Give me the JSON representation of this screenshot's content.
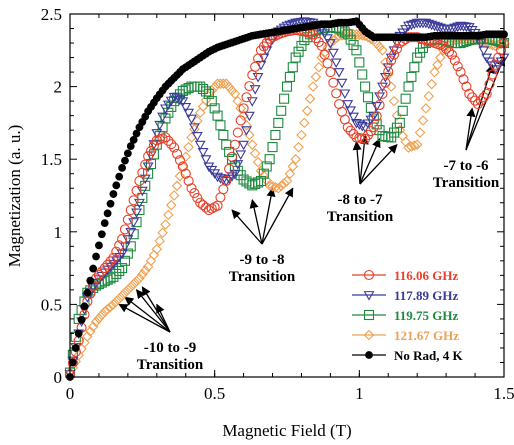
{
  "chart_data": {
    "type": "scatter",
    "xlabel": "Magnetic Field (T)",
    "ylabel": "Magnetization (a. u.)",
    "xlim": [
      0,
      1.5
    ],
    "ylim": [
      0,
      2.5
    ],
    "x_ticks": [
      "0",
      "0.5",
      "1",
      "1.5"
    ],
    "y_ticks": [
      "0",
      "0.5",
      "1",
      "1.5",
      "2",
      "2.5"
    ],
    "grid": false,
    "legend_position": "bottom-right",
    "series": [
      {
        "name": "116.06 GHz",
        "color": "#e8402a",
        "marker": "circle-open",
        "x": [
          0.0,
          0.03,
          0.06,
          0.09,
          0.12,
          0.15,
          0.18,
          0.21,
          0.24,
          0.27,
          0.3,
          0.33,
          0.36,
          0.39,
          0.42,
          0.45,
          0.48,
          0.51,
          0.54,
          0.57,
          0.6,
          0.63,
          0.66,
          0.69,
          0.72,
          0.75,
          0.78,
          0.81,
          0.84,
          0.87,
          0.9,
          0.93,
          0.96,
          0.99,
          1.02,
          1.05,
          1.08,
          1.11,
          1.14,
          1.17,
          1.2,
          1.23,
          1.26,
          1.29,
          1.32,
          1.35,
          1.38,
          1.41,
          1.44,
          1.47,
          1.5
        ],
        "y": [
          0.02,
          0.25,
          0.52,
          0.68,
          0.75,
          0.82,
          0.95,
          1.15,
          1.35,
          1.52,
          1.63,
          1.65,
          1.58,
          1.45,
          1.3,
          1.2,
          1.15,
          1.18,
          1.35,
          1.6,
          1.85,
          2.08,
          2.25,
          2.33,
          2.36,
          2.38,
          2.39,
          2.38,
          2.36,
          2.28,
          2.1,
          1.88,
          1.72,
          1.65,
          1.64,
          1.72,
          1.95,
          2.18,
          2.3,
          2.34,
          2.34,
          2.32,
          2.3,
          2.28,
          2.22,
          2.1,
          1.95,
          1.88,
          1.95,
          2.15,
          2.3
        ]
      },
      {
        "name": "117.89 GHz",
        "color": "#3a3a9a",
        "marker": "triangle-down-open",
        "x": [
          0.0,
          0.03,
          0.06,
          0.09,
          0.12,
          0.15,
          0.18,
          0.21,
          0.24,
          0.27,
          0.3,
          0.33,
          0.36,
          0.39,
          0.42,
          0.45,
          0.48,
          0.51,
          0.54,
          0.57,
          0.6,
          0.63,
          0.66,
          0.69,
          0.72,
          0.75,
          0.78,
          0.81,
          0.84,
          0.87,
          0.9,
          0.93,
          0.96,
          0.99,
          1.02,
          1.05,
          1.08,
          1.11,
          1.14,
          1.17,
          1.2,
          1.23,
          1.26,
          1.29,
          1.32,
          1.35,
          1.38,
          1.41,
          1.44,
          1.47,
          1.5
        ],
        "y": [
          0.02,
          0.3,
          0.55,
          0.65,
          0.72,
          0.78,
          0.85,
          1.0,
          1.2,
          1.45,
          1.68,
          1.85,
          1.93,
          1.9,
          1.78,
          1.6,
          1.45,
          1.38,
          1.35,
          1.4,
          1.6,
          1.9,
          2.15,
          2.3,
          2.38,
          2.42,
          2.44,
          2.45,
          2.44,
          2.4,
          2.3,
          2.1,
          1.88,
          1.75,
          1.72,
          1.8,
          2.0,
          2.2,
          2.35,
          2.42,
          2.44,
          2.44,
          2.42,
          2.4,
          2.4,
          2.42,
          2.41,
          2.35,
          2.2,
          2.12,
          2.2
        ]
      },
      {
        "name": "119.75 GHz",
        "color": "#1e8a40",
        "marker": "square-open",
        "x": [
          0.0,
          0.03,
          0.06,
          0.09,
          0.12,
          0.15,
          0.18,
          0.21,
          0.24,
          0.27,
          0.3,
          0.33,
          0.36,
          0.39,
          0.42,
          0.45,
          0.48,
          0.51,
          0.54,
          0.57,
          0.6,
          0.63,
          0.66,
          0.69,
          0.72,
          0.75,
          0.78,
          0.81,
          0.84,
          0.87,
          0.9,
          0.93,
          0.96,
          0.99,
          1.02,
          1.05,
          1.08,
          1.11,
          1.14,
          1.17,
          1.2,
          1.23,
          1.26,
          1.29,
          1.32,
          1.35,
          1.38,
          1.41,
          1.44,
          1.47,
          1.5
        ],
        "y": [
          0.03,
          0.4,
          0.58,
          0.63,
          0.66,
          0.69,
          0.75,
          0.9,
          1.15,
          1.4,
          1.6,
          1.78,
          1.9,
          1.97,
          2.0,
          2.0,
          1.95,
          1.8,
          1.6,
          1.45,
          1.36,
          1.32,
          1.35,
          1.5,
          1.75,
          2.0,
          2.2,
          2.32,
          2.38,
          2.4,
          2.41,
          2.4,
          2.36,
          2.25,
          2.0,
          1.78,
          1.66,
          1.65,
          1.75,
          2.0,
          2.2,
          2.3,
          2.33,
          2.32,
          2.3,
          2.3,
          2.32,
          2.33,
          2.33,
          2.32,
          2.3
        ]
      },
      {
        "name": "121.67 GHz",
        "color": "#f0a050",
        "marker": "diamond-open",
        "x": [
          0.0,
          0.03,
          0.06,
          0.09,
          0.12,
          0.15,
          0.18,
          0.21,
          0.24,
          0.27,
          0.3,
          0.33,
          0.36,
          0.39,
          0.42,
          0.45,
          0.48,
          0.51,
          0.54,
          0.57,
          0.6,
          0.63,
          0.66,
          0.69,
          0.72,
          0.75,
          0.78,
          0.81,
          0.84,
          0.87,
          0.9,
          0.93,
          0.96,
          0.99,
          1.02,
          1.05,
          1.08,
          1.11,
          1.14,
          1.17,
          1.2,
          1.23,
          1.26,
          1.29,
          1.32,
          1.35,
          1.38,
          1.41,
          1.44,
          1.47,
          1.5
        ],
        "y": [
          0.02,
          0.15,
          0.28,
          0.38,
          0.45,
          0.5,
          0.56,
          0.62,
          0.68,
          0.76,
          0.88,
          1.05,
          1.25,
          1.45,
          1.65,
          1.82,
          1.95,
          2.02,
          2.02,
          1.95,
          1.8,
          1.6,
          1.42,
          1.32,
          1.3,
          1.35,
          1.5,
          1.75,
          2.0,
          2.2,
          2.3,
          2.35,
          2.36,
          2.36,
          2.35,
          2.32,
          2.25,
          2.0,
          1.7,
          1.58,
          1.6,
          1.85,
          2.1,
          2.25,
          2.32,
          2.33,
          2.33,
          2.32,
          2.3,
          2.28,
          2.3
        ]
      },
      {
        "name": "No Rad, 4 K",
        "color": "#000000",
        "marker": "circle-filled",
        "x": [
          0.0,
          0.03,
          0.06,
          0.09,
          0.12,
          0.15,
          0.18,
          0.21,
          0.24,
          0.27,
          0.3,
          0.33,
          0.36,
          0.39,
          0.42,
          0.45,
          0.48,
          0.51,
          0.54,
          0.57,
          0.6,
          0.63,
          0.66,
          0.69,
          0.72,
          0.75,
          0.78,
          0.81,
          0.84,
          0.87,
          0.9,
          0.93,
          0.96,
          0.99,
          1.02,
          1.05,
          1.08,
          1.11,
          1.14,
          1.17,
          1.2,
          1.23,
          1.26,
          1.29,
          1.32,
          1.35,
          1.38,
          1.41,
          1.44,
          1.47,
          1.5
        ],
        "y": [
          0.0,
          0.3,
          0.58,
          0.83,
          1.06,
          1.26,
          1.44,
          1.59,
          1.72,
          1.83,
          1.92,
          2.0,
          2.06,
          2.12,
          2.16,
          2.2,
          2.24,
          2.27,
          2.29,
          2.31,
          2.33,
          2.35,
          2.36,
          2.37,
          2.38,
          2.39,
          2.4,
          2.41,
          2.42,
          2.43,
          2.43,
          2.44,
          2.44,
          2.45,
          2.38,
          2.34,
          2.34,
          2.34,
          2.34,
          2.34,
          2.34,
          2.34,
          2.35,
          2.35,
          2.35,
          2.35,
          2.35,
          2.35,
          2.36,
          2.36,
          2.36
        ]
      }
    ],
    "annotations": [
      {
        "text": "-10 to -9\nTransition",
        "targets": [
          [
            0.17,
            0.5
          ],
          [
            0.19,
            0.55
          ],
          [
            0.23,
            0.6
          ],
          [
            0.25,
            0.62
          ],
          [
            0.3,
            0.5
          ]
        ]
      },
      {
        "text": "-9 to -8\nTransition",
        "targets": [
          [
            0.56,
            1.15
          ],
          [
            0.63,
            1.22
          ],
          [
            0.7,
            1.3
          ],
          [
            0.77,
            1.3
          ]
        ]
      },
      {
        "text": "-8 to -7\nTransition",
        "targets": [
          [
            0.99,
            1.62
          ],
          [
            1.02,
            1.66
          ],
          [
            1.07,
            1.64
          ],
          [
            1.13,
            1.6
          ]
        ]
      },
      {
        "text": "-7 to -6\nTransition",
        "targets": [
          [
            1.39,
            1.85
          ],
          [
            1.46,
            2.15
          ],
          [
            1.5,
            2.2
          ]
        ]
      }
    ]
  }
}
